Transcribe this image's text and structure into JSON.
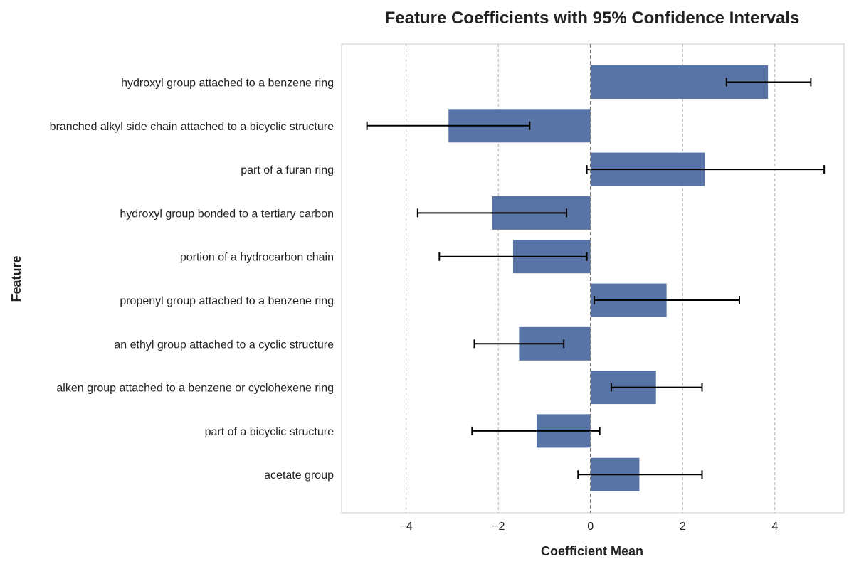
{
  "chart_data": {
    "type": "bar",
    "orientation": "horizontal",
    "title": "Feature Coefficients with 95% Confidence Intervals",
    "xlabel": "Coefficient Mean",
    "ylabel": "Feature",
    "xlim": [
      -5.4,
      5.5
    ],
    "xticks": [
      -4,
      -2,
      0,
      2,
      4
    ],
    "xtick_labels": [
      "−4",
      "−2",
      "0",
      "2",
      "4"
    ],
    "grid": "vertical dashed",
    "bar_color": "#5874a6",
    "zero_line": true,
    "categories": [
      "hydroxyl group attached to a benzene ring",
      "branched alkyl side chain attached to a bicyclic structure",
      "part of a furan ring",
      "hydroxyl group bonded to a tertiary carbon",
      "portion of a hydrocarbon chain",
      "propenyl group attached to a benzene ring",
      "an ethyl group attached to a cyclic structure",
      "alken group attached to a benzene or cyclohexene ring",
      "part of a bicyclic structure",
      "acetate group"
    ],
    "values": [
      3.85,
      -3.08,
      2.48,
      -2.13,
      -1.68,
      1.65,
      -1.55,
      1.42,
      -1.17,
      1.06
    ],
    "ci_lower": [
      2.95,
      -4.85,
      -0.08,
      -3.75,
      -3.28,
      0.08,
      -2.52,
      0.45,
      -2.57,
      -0.27
    ],
    "ci_upper": [
      4.78,
      -1.32,
      5.07,
      -0.52,
      -0.08,
      3.23,
      -0.58,
      2.42,
      0.2,
      2.42
    ]
  }
}
